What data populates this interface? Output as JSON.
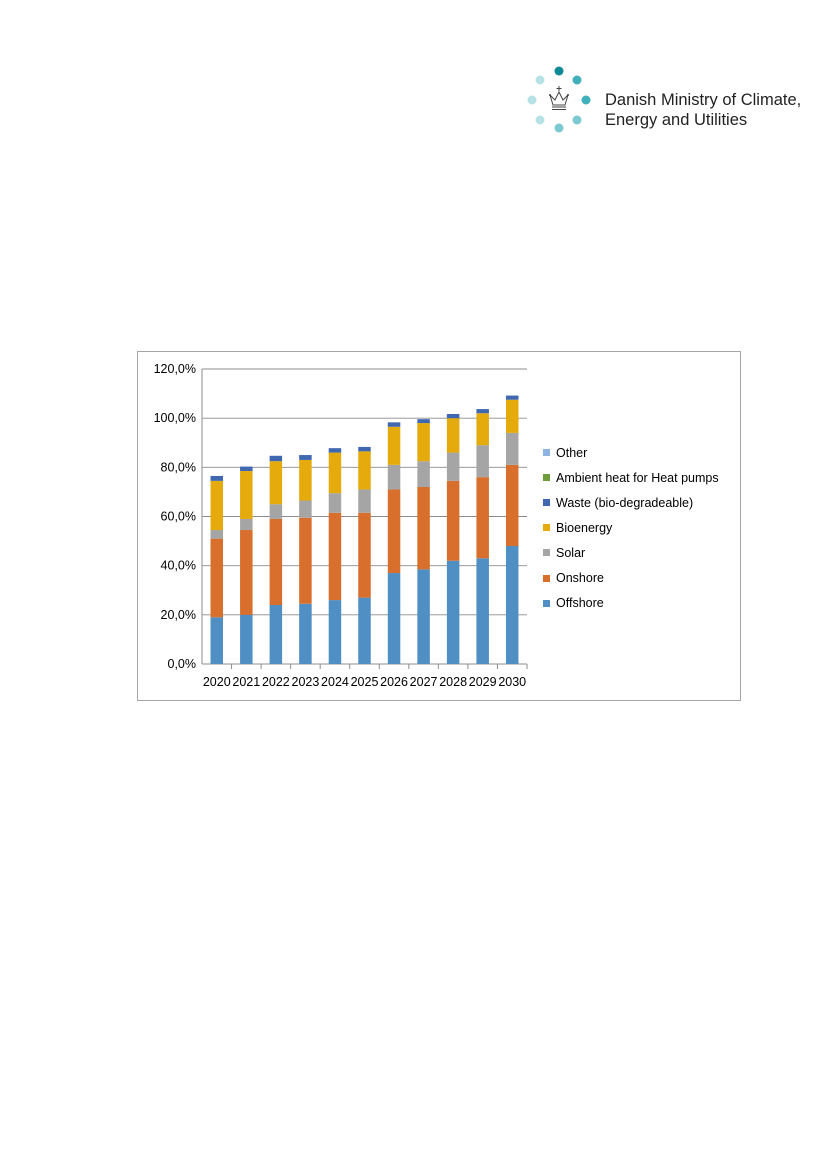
{
  "header": {
    "logo_text_line1": "Danish Ministry of Climate,",
    "logo_text_line2": "Energy and Utilities",
    "logo_icon": "crown-icon",
    "logo_colors": [
      "#0e8a96",
      "#3fb1bb",
      "#7ccad0",
      "#b7e2e5"
    ]
  },
  "chart_data": {
    "type": "bar",
    "stacked": true,
    "title": "",
    "xlabel": "",
    "ylabel": "",
    "ylim": [
      0,
      120
    ],
    "yticks": [
      0,
      20,
      40,
      60,
      80,
      100,
      120
    ],
    "ytick_labels": [
      "0,0%",
      "20,0%",
      "40,0%",
      "60,0%",
      "80,0%",
      "100,0%",
      "120,0%"
    ],
    "grid": true,
    "legend_position": "right",
    "categories": [
      "2020",
      "2021",
      "2022",
      "2023",
      "2024",
      "2025",
      "2026",
      "2027",
      "2028",
      "2029",
      "2030"
    ],
    "series": [
      {
        "name": "Offshore",
        "color": "#4f8fc4",
        "values": [
          19.0,
          20.0,
          24.0,
          24.5,
          26.0,
          27.0,
          37.0,
          38.5,
          42.0,
          43.0,
          48.0
        ]
      },
      {
        "name": "Onshore",
        "color": "#d86f2c",
        "values": [
          32.0,
          34.5,
          35.0,
          35.0,
          35.5,
          34.5,
          34.0,
          33.5,
          32.5,
          33.0,
          33.0
        ]
      },
      {
        "name": "Solar",
        "color": "#a5a5a5",
        "values": [
          3.5,
          4.5,
          6.0,
          7.0,
          8.0,
          9.5,
          10.0,
          10.5,
          11.5,
          13.0,
          13.0
        ]
      },
      {
        "name": "Bioenergy",
        "color": "#e5aa0c",
        "values": [
          20.0,
          19.5,
          17.5,
          16.5,
          16.5,
          15.5,
          15.5,
          15.5,
          14.0,
          13.0,
          13.5
        ]
      },
      {
        "name": "Waste (bio-degradeable)",
        "color": "#3f68b1",
        "values": [
          2.0,
          1.8,
          2.2,
          2.0,
          1.8,
          1.8,
          1.8,
          1.6,
          1.7,
          1.7,
          1.7
        ]
      },
      {
        "name": "Ambient heat for Heat pumps",
        "color": "#6f9c3c",
        "values": [
          0,
          0,
          0,
          0,
          0,
          0,
          0,
          0,
          0,
          0,
          0
        ]
      },
      {
        "name": "Other",
        "color": "#8eb4e2",
        "values": [
          0,
          0,
          0,
          0,
          0,
          0,
          0,
          0,
          0,
          0,
          0
        ]
      }
    ]
  }
}
